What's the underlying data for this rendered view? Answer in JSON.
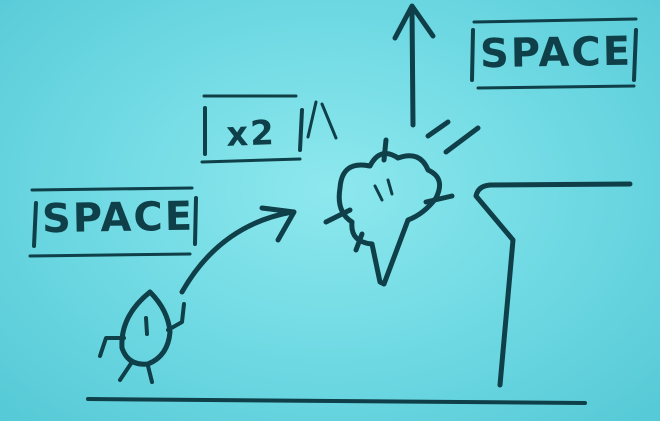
{
  "keys": {
    "first_jump": "SPACE",
    "multiplier": "x2",
    "second_jump": "SPACE"
  },
  "colors": {
    "background": "#6dd8e2",
    "ink": "#0f3f48"
  },
  "icons": {
    "player": "teardrop-character-icon",
    "burst": "double-jump-burst-icon",
    "up": "arrow-up-icon",
    "jump_path": "curved-arrow-icon"
  }
}
